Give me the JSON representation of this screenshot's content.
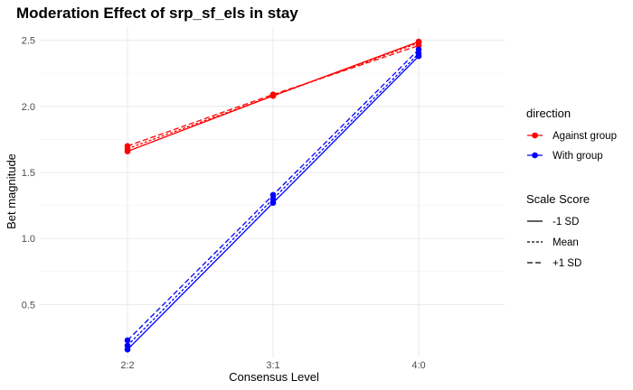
{
  "chart_data": {
    "type": "line",
    "title": "Moderation Effect of srp_sf_els in stay",
    "xlabel": "Consensus Level",
    "ylabel": "Bet magnitude",
    "categories": [
      "2:2",
      "3:1",
      "4:0"
    ],
    "ylim": [
      0.1,
      2.6
    ],
    "yticks": [
      0.5,
      1.0,
      1.5,
      2.0,
      2.5
    ],
    "ytick_labels": [
      "0.5",
      "1.0",
      "1.5",
      "2.0",
      "2.5"
    ],
    "grid": true,
    "legend": {
      "placement": "right",
      "color_title": "direction",
      "color_entries": [
        {
          "label": "Against group",
          "color": "#ff0000"
        },
        {
          "label": "With group",
          "color": "#0000ff"
        }
      ],
      "linetype_title": "Scale Score",
      "linetype_entries": [
        {
          "label": "-1 SD",
          "dash": "solid"
        },
        {
          "label": "Mean",
          "dash": "dotted"
        },
        {
          "label": "+1 SD",
          "dash": "dashed"
        }
      ]
    },
    "series": [
      {
        "direction": "Against group",
        "scale": "-1 SD",
        "color": "#ff0000",
        "dash": "solid",
        "values": [
          1.66,
          2.08,
          2.49
        ]
      },
      {
        "direction": "Against group",
        "scale": "Mean",
        "color": "#ff0000",
        "dash": "dotted",
        "values": [
          1.68,
          2.08,
          2.48
        ]
      },
      {
        "direction": "Against group",
        "scale": "+1 SD",
        "color": "#ff0000",
        "dash": "dashed",
        "values": [
          1.7,
          2.09,
          2.46
        ]
      },
      {
        "direction": "With group",
        "scale": "-1 SD",
        "color": "#0000ff",
        "dash": "solid",
        "values": [
          0.16,
          1.27,
          2.38
        ]
      },
      {
        "direction": "With group",
        "scale": "Mean",
        "color": "#0000ff",
        "dash": "dotted",
        "values": [
          0.19,
          1.3,
          2.4
        ]
      },
      {
        "direction": "With group",
        "scale": "+1 SD",
        "color": "#0000ff",
        "dash": "dashed",
        "values": [
          0.23,
          1.33,
          2.43
        ]
      }
    ]
  }
}
